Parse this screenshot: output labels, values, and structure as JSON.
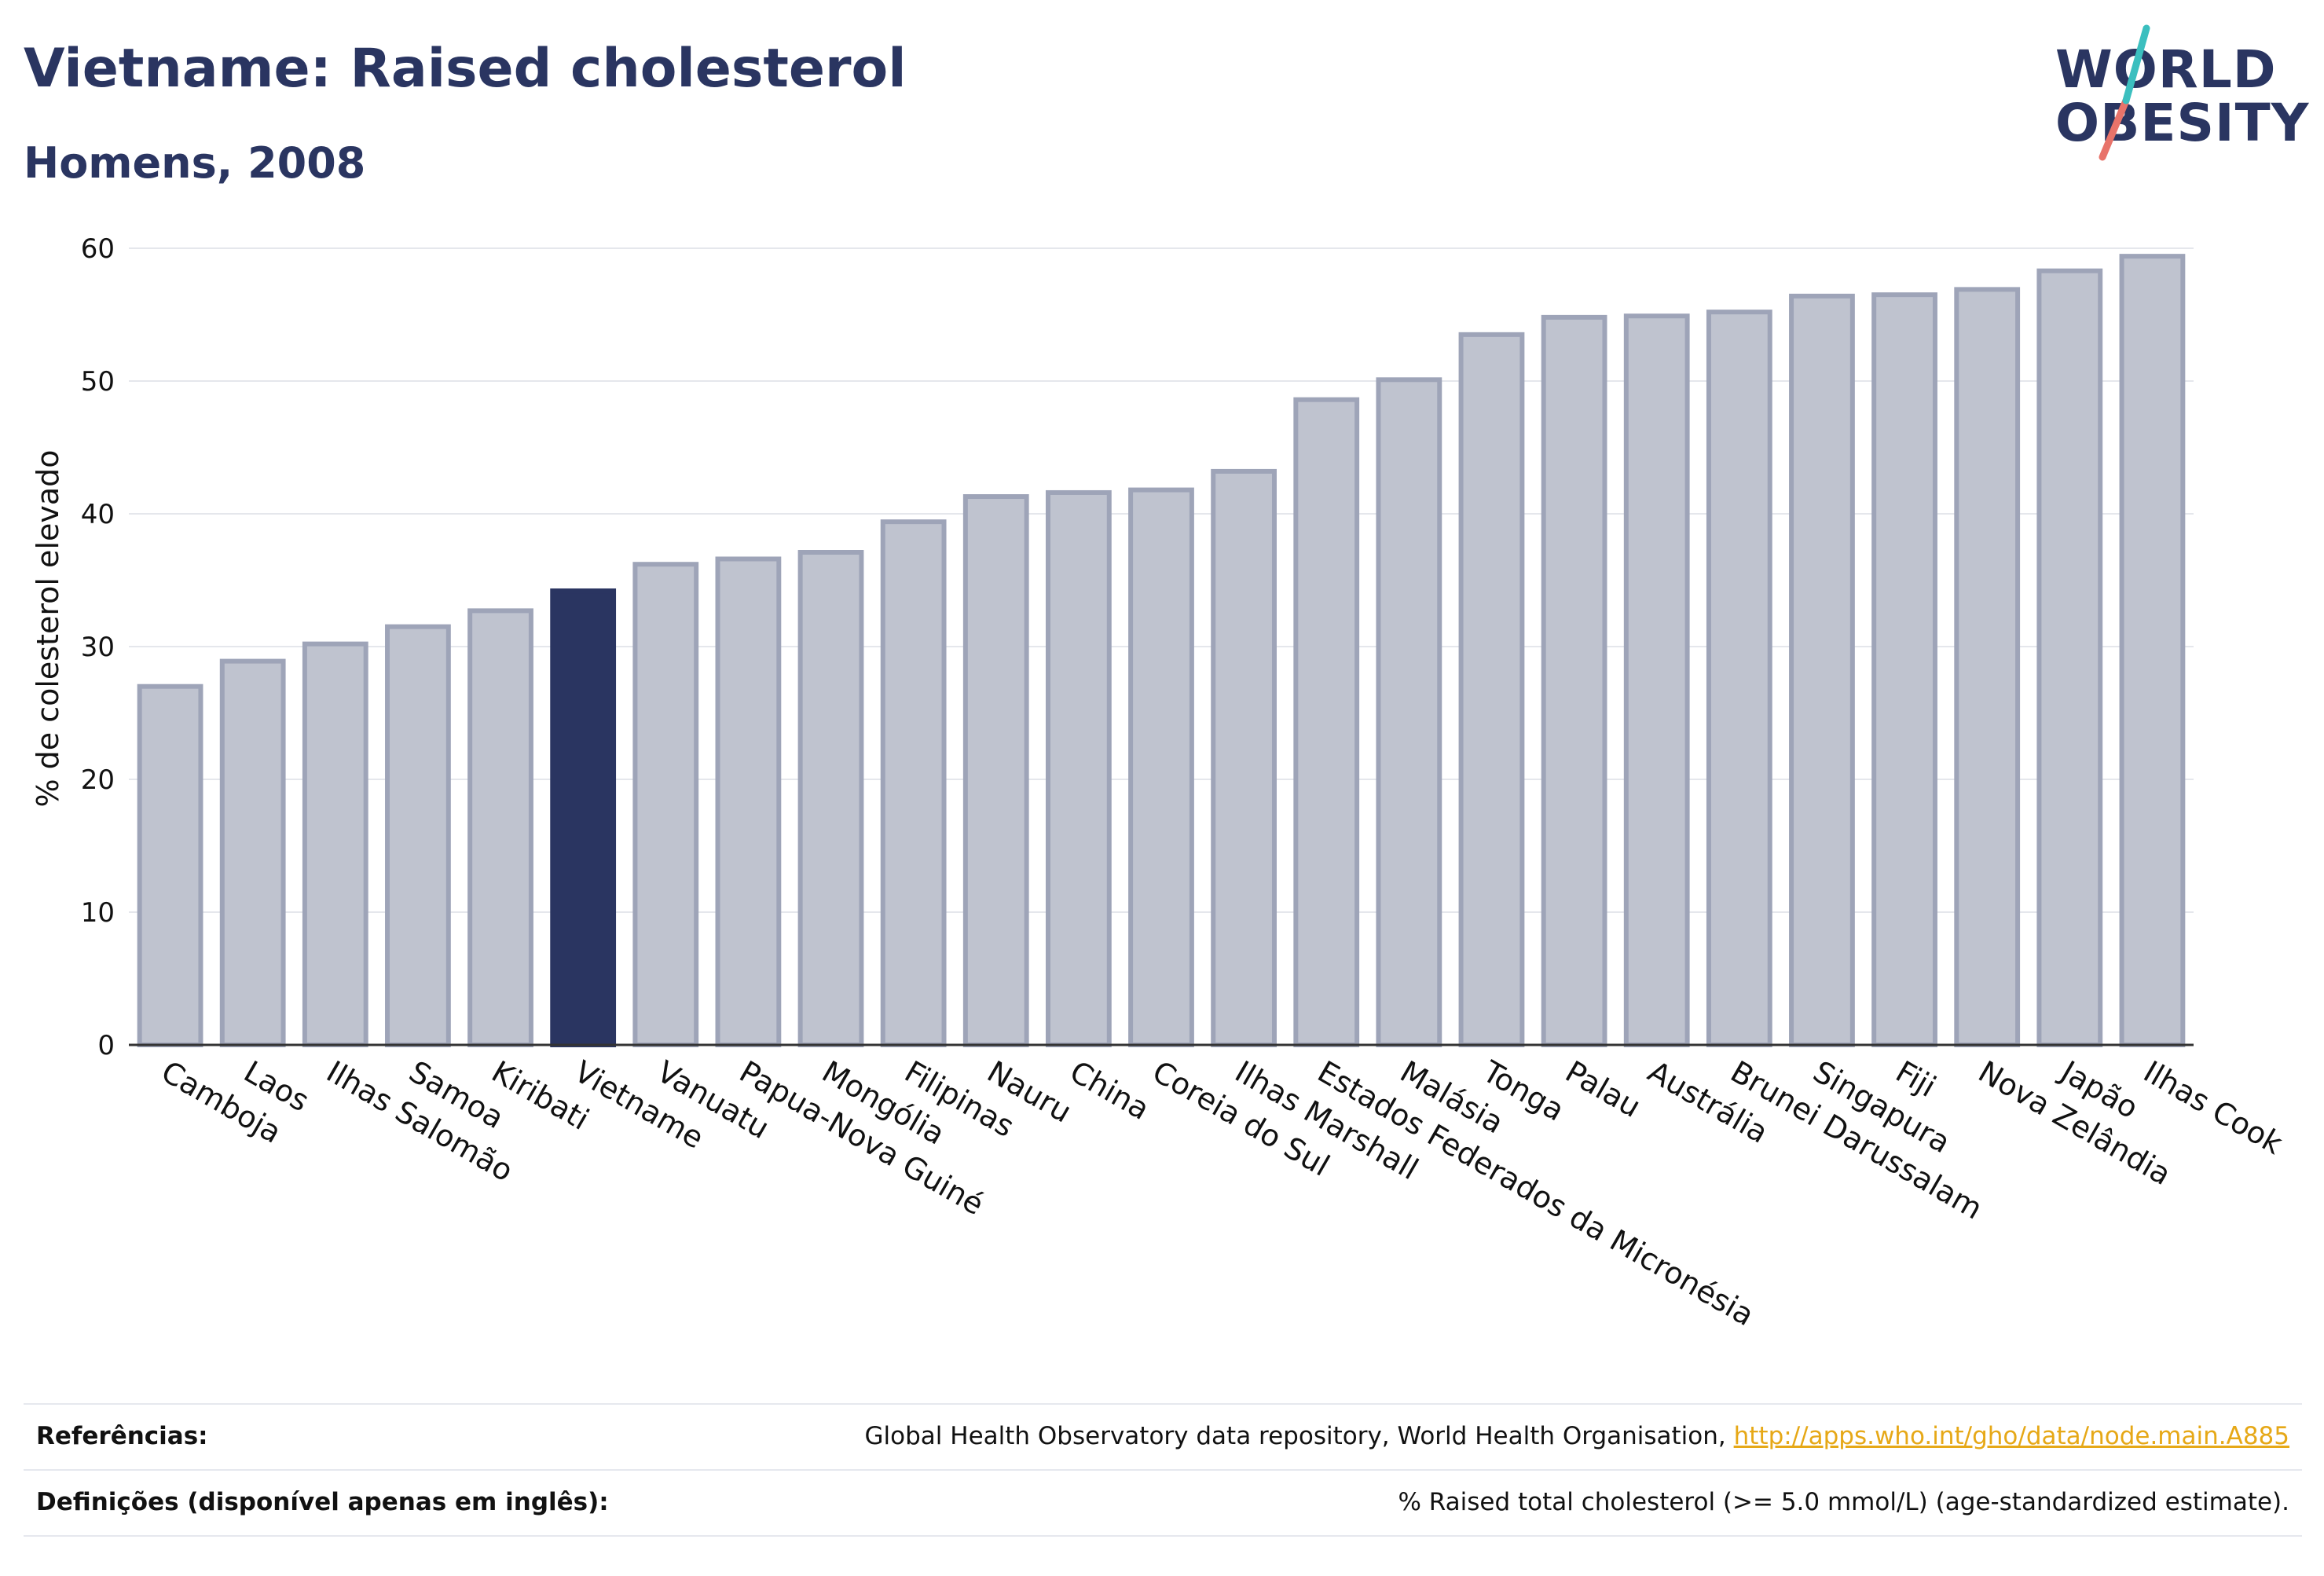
{
  "title": "Vietname: Raised cholesterol",
  "subtitle": "Homens, 2008",
  "logo": {
    "line1": "WORLD",
    "line2": "OBESITY"
  },
  "colors": {
    "highlight": "#2a3561",
    "bar": "#bfc3cf",
    "bar_stroke": "#9ea4b8",
    "grid": "#e5e7ec",
    "link": "#e6a817"
  },
  "chart_data": {
    "type": "bar",
    "ylabel": "% de colesterol elevado",
    "xlabel": "",
    "ylim": [
      0,
      60
    ],
    "yticks": [
      0,
      10,
      20,
      30,
      40,
      50,
      60
    ],
    "grid": true,
    "highlight": "Vietname",
    "categories": [
      "Camboja",
      "Laos",
      "Ilhas Salomão",
      "Samoa",
      "Kiribati",
      "Vietname",
      "Vanuatu",
      "Papua-Nova Guiné",
      "Mongólia",
      "Filipinas",
      "Nauru",
      "China",
      "Coreia do Sul",
      "Ilhas Marshall",
      "Estados Federados da Micronésia",
      "Malásia",
      "Tonga",
      "Palau",
      "Austrália",
      "Brunei Darussalam",
      "Singapura",
      "Fiji",
      "Nova Zelândia",
      "Japão",
      "Ilhas Cook"
    ],
    "values": [
      27.0,
      28.9,
      30.2,
      31.5,
      32.7,
      34.2,
      36.2,
      36.6,
      37.1,
      39.4,
      41.3,
      41.6,
      41.8,
      43.2,
      48.6,
      50.1,
      53.5,
      54.8,
      54.9,
      55.2,
      56.4,
      56.5,
      56.9,
      58.3,
      59.4
    ]
  },
  "footer": {
    "references_label": "Referências:",
    "references_text": "Global Health Observatory data repository, World Health Organisation, ",
    "references_link": "http://apps.who.int/gho/data/node.main.A885",
    "definitions_label": "Definições (disponível apenas em inglês):",
    "definitions_text": "% Raised total cholesterol (>= 5.0 mmol/L) (age-standardized estimate)."
  }
}
